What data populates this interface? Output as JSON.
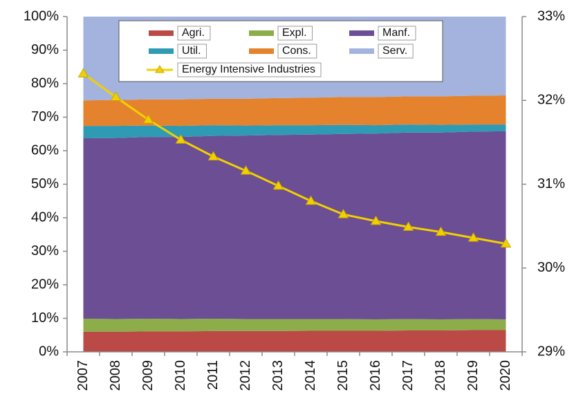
{
  "chart_data": {
    "type": "stacked_area_line",
    "categories": [
      "2007",
      "2008",
      "2009",
      "2010",
      "2011",
      "2012",
      "2013",
      "2014",
      "2015",
      "2016",
      "2017",
      "2018",
      "2019",
      "2020"
    ],
    "series": [
      {
        "name": "Agri.",
        "color": "#bb4a47",
        "values": [
          6.0,
          6.0,
          6.1,
          6.1,
          6.2,
          6.2,
          6.2,
          6.3,
          6.3,
          6.3,
          6.4,
          6.4,
          6.5,
          6.5
        ]
      },
      {
        "name": "Expl.",
        "color": "#8cad4a",
        "values": [
          3.9,
          3.8,
          3.8,
          3.7,
          3.7,
          3.6,
          3.6,
          3.5,
          3.5,
          3.4,
          3.4,
          3.3,
          3.3,
          3.2
        ]
      },
      {
        "name": "Manf.",
        "color": "#6b4e94",
        "values": [
          53.8,
          54.0,
          54.2,
          54.3,
          54.5,
          54.7,
          54.9,
          55.0,
          55.2,
          55.4,
          55.6,
          55.7,
          55.9,
          56.1
        ]
      },
      {
        "name": "Util.",
        "color": "#2f9ab4",
        "values": [
          3.7,
          3.6,
          3.4,
          3.3,
          3.2,
          3.0,
          2.9,
          2.8,
          2.7,
          2.5,
          2.4,
          2.3,
          2.1,
          2.0
        ]
      },
      {
        "name": "Cons.",
        "color": "#e5822e",
        "values": [
          7.6,
          7.7,
          7.8,
          7.9,
          7.9,
          8.0,
          8.1,
          8.2,
          8.3,
          8.4,
          8.4,
          8.5,
          8.6,
          8.7
        ]
      },
      {
        "name": "Serv.",
        "color": "#a3b3de",
        "values": [
          25.0,
          24.9,
          24.7,
          24.7,
          24.5,
          24.5,
          24.3,
          24.2,
          24.0,
          24.0,
          23.8,
          23.8,
          23.6,
          23.5
        ]
      },
      {
        "name": "Energy Intensive Industries",
        "color": "#f2d000",
        "axis": "y2",
        "values": [
          32.32,
          32.04,
          31.77,
          31.53,
          31.33,
          31.16,
          30.98,
          30.8,
          30.64,
          30.56,
          30.49,
          30.43,
          30.36,
          30.29
        ]
      }
    ],
    "ylim": [
      0,
      100
    ],
    "yticks": [
      {
        "value": 0,
        "label": "0%"
      },
      {
        "value": 10,
        "label": "10%"
      },
      {
        "value": 20,
        "label": "20%"
      },
      {
        "value": 30,
        "label": "30%"
      },
      {
        "value": 40,
        "label": "40%"
      },
      {
        "value": 50,
        "label": "50%"
      },
      {
        "value": 60,
        "label": "60%"
      },
      {
        "value": 70,
        "label": "70%"
      },
      {
        "value": 80,
        "label": "80%"
      },
      {
        "value": 90,
        "label": "90%"
      },
      {
        "value": 100,
        "label": "100%"
      }
    ],
    "y2lim": [
      29,
      33
    ],
    "y2ticks": [
      {
        "value": 29,
        "label": "29%"
      },
      {
        "value": 30,
        "label": "30%"
      },
      {
        "value": 31,
        "label": "31%"
      },
      {
        "value": 32,
        "label": "32%"
      },
      {
        "value": 33,
        "label": "33%"
      }
    ],
    "legend": "top"
  }
}
